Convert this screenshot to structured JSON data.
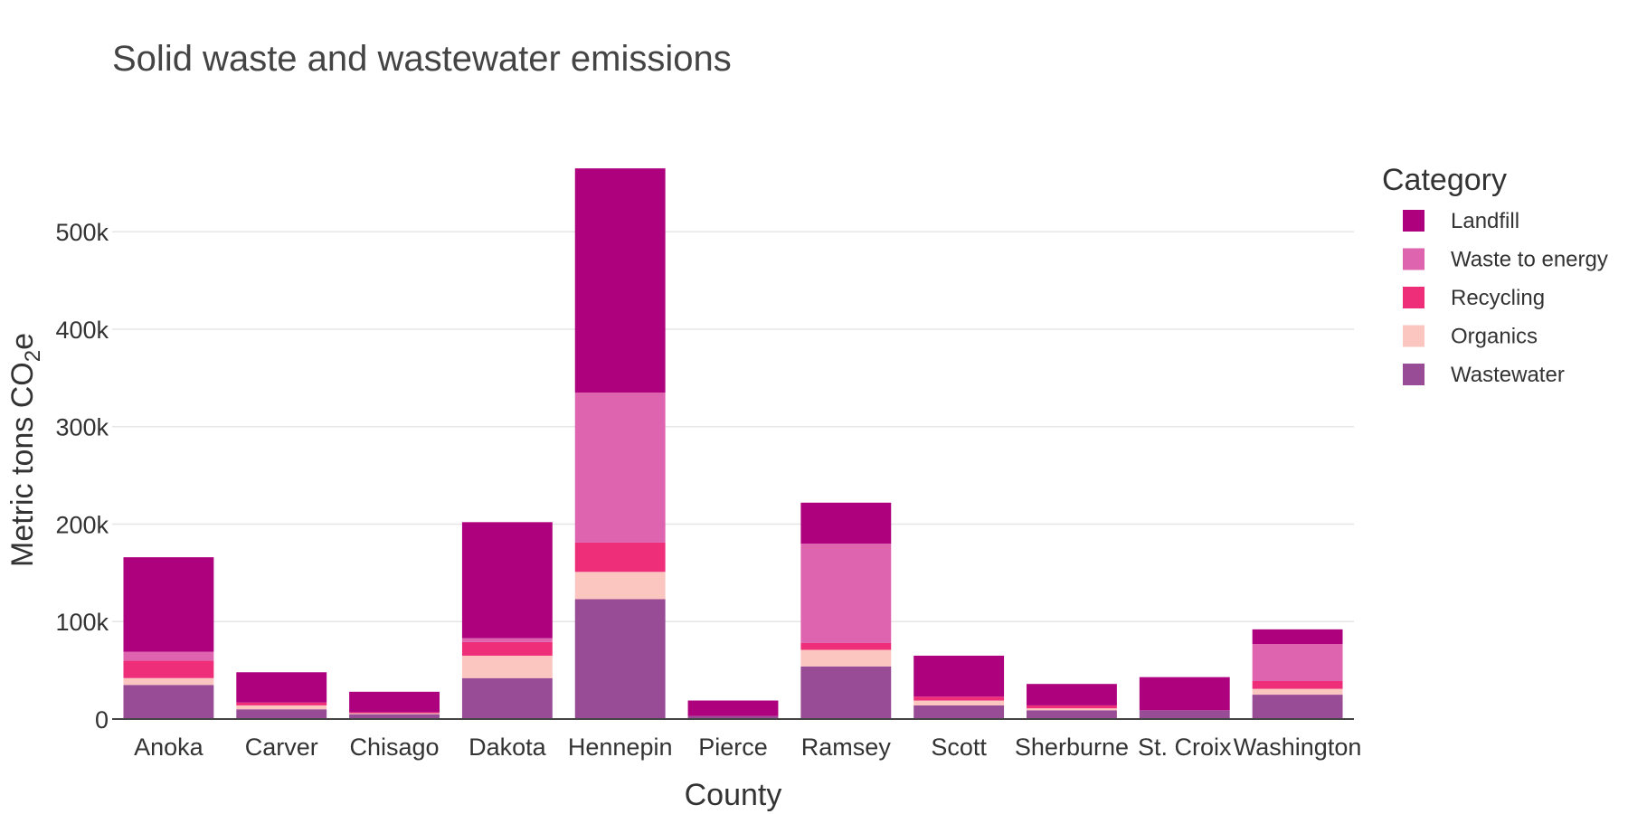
{
  "chart_data": {
    "type": "bar",
    "stacked": true,
    "title": "Solid waste and wastewater emissions",
    "xlabel": "County",
    "ylabel": "Metric tons CO",
    "ylabel_subscript": "2",
    "ylabel_suffix": "e",
    "ylim": [
      0,
      580000
    ],
    "yticks": [
      0,
      100000,
      200000,
      300000,
      400000,
      500000
    ],
    "ytick_labels": [
      "0",
      "100k",
      "200k",
      "300k",
      "400k",
      "500k"
    ],
    "grid": true,
    "legend": {
      "title": "Category",
      "position": "right"
    },
    "categories": [
      "Anoka",
      "Carver",
      "Chisago",
      "Dakota",
      "Hennepin",
      "Pierce",
      "Ramsey",
      "Scott",
      "Sherburne",
      "St. Croix",
      "Washington"
    ],
    "series": [
      {
        "name": "Wastewater",
        "color": "#984c96",
        "values": [
          35000,
          10000,
          5000,
          42000,
          123000,
          3000,
          54000,
          14000,
          9000,
          9000,
          25000
        ]
      },
      {
        "name": "Organics",
        "color": "#fbc5c0",
        "values": [
          7000,
          4000,
          1000,
          23000,
          28000,
          0,
          17000,
          5000,
          2000,
          0,
          6000
        ]
      },
      {
        "name": "Recycling",
        "color": "#ee2e79",
        "values": [
          18000,
          3000,
          1000,
          14000,
          30000,
          0,
          7000,
          4000,
          3000,
          0,
          8000
        ]
      },
      {
        "name": "Waste to energy",
        "color": "#de64af",
        "values": [
          9000,
          0,
          0,
          4000,
          154000,
          0,
          102000,
          0,
          0,
          0,
          38000
        ]
      },
      {
        "name": "Landfill",
        "color": "#ae017e",
        "values": [
          97000,
          31000,
          21000,
          119000,
          230000,
          16000,
          42000,
          42000,
          22000,
          34000,
          15000
        ]
      }
    ]
  }
}
